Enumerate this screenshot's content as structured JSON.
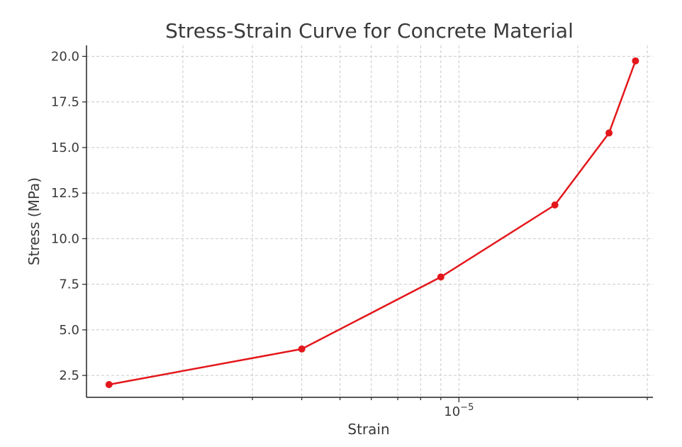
{
  "chart_data": {
    "type": "line",
    "title": "Stress-Strain Curve for Concrete Material",
    "xlabel": "Strain",
    "ylabel": "Stress (MPa)",
    "xscale": "log",
    "xlim": [
      1.14e-06,
      3.1e-05
    ],
    "ylim": [
      1.3,
      20.6
    ],
    "x_tick_labels": [
      {
        "value": 1e-05,
        "base": "10",
        "exponent": "−5"
      }
    ],
    "x_minor_ticks": [
      2e-06,
      3e-06,
      4e-06,
      5e-06,
      6e-06,
      7e-06,
      8e-06,
      9e-06,
      2e-05,
      3e-05
    ],
    "y_ticks": [
      2.5,
      5.0,
      7.5,
      10.0,
      12.5,
      15.0,
      17.5,
      20.0
    ],
    "y_tick_labels": [
      "2.5",
      "5.0",
      "7.5",
      "10.0",
      "12.5",
      "15.0",
      "17.5",
      "20.0"
    ],
    "grid": true,
    "line_color": "#e3171b",
    "series": [
      {
        "x": [
          1.3e-06,
          4e-06,
          9e-06,
          1.75e-05,
          2.4e-05,
          2.8e-05
        ],
        "y": [
          2.0,
          3.95,
          7.9,
          11.85,
          15.8,
          19.75
        ]
      }
    ]
  }
}
